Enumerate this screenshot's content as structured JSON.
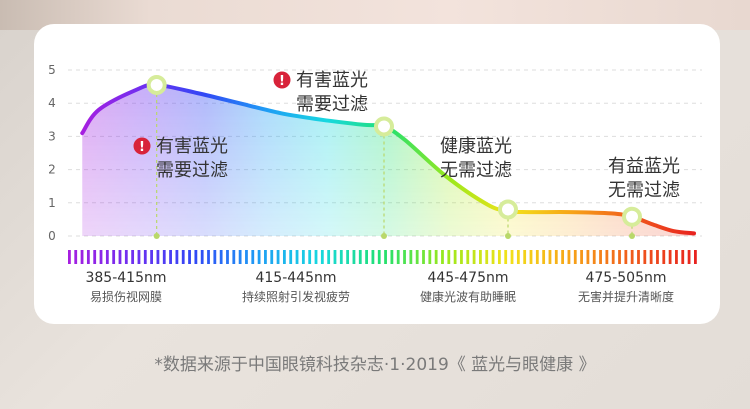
{
  "chart_data": {
    "type": "area",
    "y_ticks": [
      "0",
      "1",
      "2",
      "3",
      "4",
      "5"
    ],
    "ylim": [
      0,
      5
    ],
    "xlim": [
      370,
      520
    ],
    "grid": true,
    "curve": {
      "x": [
        372,
        376,
        385,
        390,
        400,
        410,
        420,
        430,
        440,
        445,
        450,
        460,
        470,
        475,
        480,
        490,
        500,
        505,
        510,
        515,
        520
      ],
      "y": [
        3.1,
        3.8,
        4.4,
        4.55,
        4.3,
        4.0,
        3.7,
        3.5,
        3.35,
        3.3,
        2.9,
        1.8,
        0.95,
        0.75,
        0.72,
        0.72,
        0.68,
        0.58,
        0.35,
        0.15,
        0.08
      ]
    },
    "markers": [
      {
        "x": 390,
        "y": 4.55
      },
      {
        "x": 445,
        "y": 3.3
      },
      {
        "x": 475,
        "y": 0.8
      },
      {
        "x": 505,
        "y": 0.58
      }
    ],
    "annotations": [
      {
        "lines": [
          "有害蓝光",
          "需要过滤"
        ],
        "warn": true
      },
      {
        "lines": [
          "有害蓝光",
          "需要过滤"
        ],
        "warn": true
      },
      {
        "lines": [
          "健康蓝光",
          "无需过滤"
        ],
        "warn": false
      },
      {
        "lines": [
          "有益蓝光",
          "无需过滤"
        ],
        "warn": false
      }
    ],
    "bands": [
      {
        "range": "385-415nm",
        "desc": "易损伤视网膜"
      },
      {
        "range": "415-445nm",
        "desc": "持续照射引发视疲劳"
      },
      {
        "range": "445-475nm",
        "desc": "健康光波有助睡眠"
      },
      {
        "range": "475-505nm",
        "desc": "无害并提升清晰度"
      }
    ],
    "spectrum_colors": [
      "#a61fe0",
      "#6f2ff0",
      "#3148f5",
      "#1f9cf5",
      "#18d8e0",
      "#22e070",
      "#9be81c",
      "#f2e21a",
      "#f7a418",
      "#f05a1c",
      "#e8231f"
    ]
  },
  "colors": {
    "warn": "#d8233a",
    "marker_ring": "#d6ec9a",
    "text": "#333333",
    "sub_text": "#555555",
    "axis_text": "#666666",
    "grid": "#dddddd"
  },
  "footnote": "*数据来源于中国眼镜科技杂志·1·2019《 蓝光与眼健康 》"
}
